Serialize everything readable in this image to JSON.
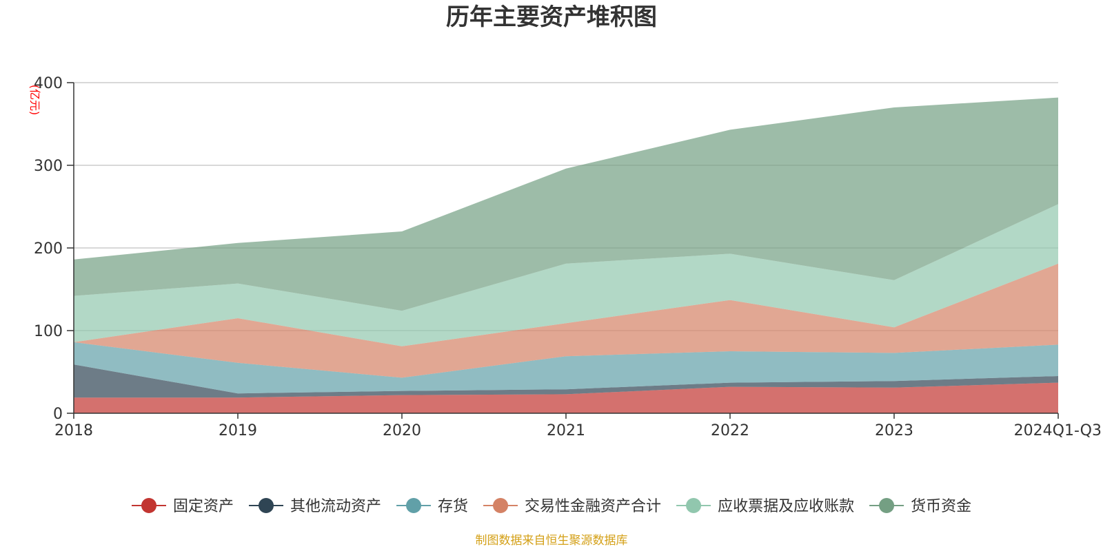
{
  "chart_data": {
    "type": "area",
    "stacked": true,
    "title": "历年主要资产堆积图",
    "unit_label": "(亿元)",
    "categories": [
      "2018",
      "2019",
      "2020",
      "2021",
      "2022",
      "2023",
      "2024Q1-Q3"
    ],
    "ylim": [
      0,
      400
    ],
    "yticks": [
      0,
      100,
      200,
      300,
      400
    ],
    "grid": true,
    "legend_position": "bottom",
    "series": [
      {
        "name": "固定资产",
        "color": "#c23531",
        "values": [
          19,
          19,
          22,
          23,
          32,
          31,
          37
        ]
      },
      {
        "name": "其他流动资产",
        "color": "#2f4554",
        "values": [
          40,
          5,
          5,
          6,
          5,
          8,
          8
        ]
      },
      {
        "name": "存货",
        "color": "#61a0a8",
        "values": [
          27,
          37,
          16,
          40,
          38,
          34,
          38
        ]
      },
      {
        "name": "交易性金融资产合计",
        "color": "#d48265",
        "values": [
          0,
          54,
          38,
          40,
          62,
          31,
          98
        ]
      },
      {
        "name": "应收票据及应收账款",
        "color": "#91c7ae",
        "values": [
          56,
          42,
          43,
          72,
          56,
          57,
          72
        ]
      },
      {
        "name": "货币资金",
        "color": "#749f83",
        "values": [
          44,
          49,
          96,
          115,
          150,
          209,
          129
        ]
      }
    ]
  },
  "source_note": "制图数据来自恒生聚源数据库",
  "colors": {
    "unit": "#ff0000",
    "source": "#d4a017",
    "grid": "#cccccc",
    "axis": "#333333"
  }
}
